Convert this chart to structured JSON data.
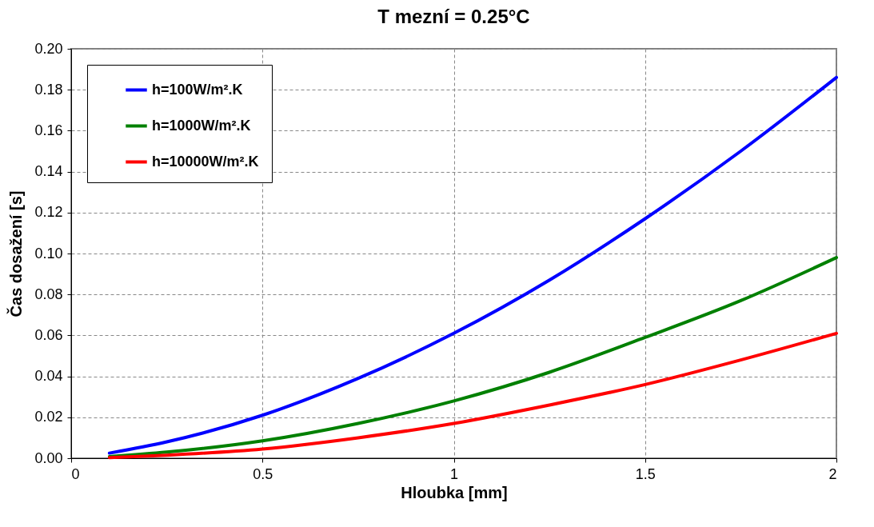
{
  "chart_data": {
    "type": "line",
    "title": "T mezní = 0.25°C",
    "xlabel": "Hloubka [mm]",
    "ylabel": "Čas dosažení [s]",
    "x": [
      0.1,
      0.25,
      0.5,
      0.75,
      1,
      1.25,
      1.5,
      1.75,
      2
    ],
    "series": [
      {
        "name": "h=100W/m².K",
        "color": "#0000ff",
        "values": [
          0.0025,
          0.008,
          0.021,
          0.039,
          0.061,
          0.087,
          0.117,
          0.15,
          0.186
        ]
      },
      {
        "name": "h=1000W/m².K",
        "color": "#008000",
        "values": [
          0.0008,
          0.003,
          0.0085,
          0.017,
          0.028,
          0.042,
          0.059,
          0.077,
          0.098
        ]
      },
      {
        "name": "h=10000W/m².K",
        "color": "#ff0000",
        "values": [
          0.0003,
          0.0015,
          0.0045,
          0.01,
          0.017,
          0.026,
          0.036,
          0.048,
          0.061
        ]
      }
    ],
    "xlim": [
      0,
      2
    ],
    "xticks": [
      0,
      0.5,
      1,
      1.5,
      2
    ],
    "ylim": [
      0,
      0.2
    ],
    "yticks": [
      {
        "value": 0,
        "label": "0.00"
      },
      {
        "value": 0.02,
        "label": "0.02"
      },
      {
        "value": 0.04,
        "label": "0.04"
      },
      {
        "value": 0.06,
        "label": "0.06"
      },
      {
        "value": 0.08,
        "label": "0.08"
      },
      {
        "value": 0.1,
        "label": "0.10"
      },
      {
        "value": 0.12,
        "label": "0.12"
      },
      {
        "value": 0.14,
        "label": "0.14"
      },
      {
        "value": 0.16,
        "label": "0.16"
      },
      {
        "value": 0.18,
        "label": "0.18"
      },
      {
        "value": 0.2,
        "label": "0.20"
      }
    ],
    "grid": true,
    "legend": "top left",
    "line_style": "solid"
  }
}
